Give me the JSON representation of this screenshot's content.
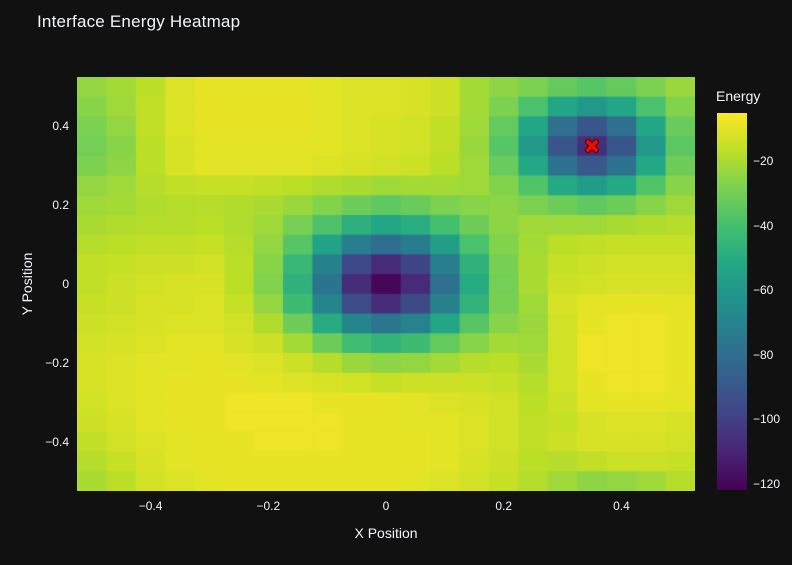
{
  "title": "Interface Energy Heatmap",
  "colors": {
    "background": "#111111",
    "text": "#f2f5fa",
    "marker_red": "#e8100c",
    "marker_edge": "#7a0000"
  },
  "chart_data": {
    "type": "heatmap",
    "title": "Interface Energy Heatmap",
    "xlabel": "X Position",
    "ylabel": "Y Position",
    "x_range": [
      -0.525,
      0.525
    ],
    "y_range": [
      -0.525,
      0.525
    ],
    "x_ticks": [
      -0.4,
      -0.2,
      0,
      0.2,
      0.4
    ],
    "y_ticks": [
      0.4,
      0.2,
      0,
      -0.2,
      -0.4
    ],
    "grid": false,
    "legend": false,
    "colorbar": {
      "title": "Energy",
      "ticks": [
        -20,
        -40,
        -60,
        -80,
        -100,
        -120
      ],
      "position": "right"
    },
    "zmin": -122,
    "zmax": -5,
    "colorscale": "viridis",
    "colorscale_stops": [
      "#440154",
      "#482475",
      "#414487",
      "#355f8d",
      "#2a788e",
      "#21918c",
      "#22a884",
      "#44bf70",
      "#7ad151",
      "#bddf26",
      "#fde725"
    ],
    "marker": {
      "symbol": "x",
      "x": 0.35,
      "y": 0.35,
      "note": "red X at secondary energy well"
    },
    "x": [
      -0.5,
      -0.45,
      -0.4,
      -0.35,
      -0.3,
      -0.25,
      -0.2,
      -0.15,
      -0.1,
      -0.05,
      0,
      0.05,
      0.1,
      0.15,
      0.2,
      0.25,
      0.3,
      0.35,
      0.4,
      0.45,
      0.5
    ],
    "y": [
      0.5,
      0.45,
      0.4,
      0.35,
      0.3,
      0.25,
      0.2,
      0.15,
      0.1,
      0.05,
      0,
      -0.05,
      -0.1,
      -0.15,
      -0.2,
      -0.25,
      -0.3,
      -0.35,
      -0.4,
      -0.45,
      -0.5
    ],
    "z": [
      [
        -24,
        -21,
        -17,
        -11,
        -9,
        -9,
        -9,
        -9,
        -10,
        -11,
        -11,
        -12,
        -14,
        -21,
        -25,
        -28,
        -33,
        -36,
        -33,
        -28,
        -23
      ],
      [
        -26,
        -22,
        -16,
        -11,
        -9,
        -9,
        -9,
        -9,
        -10,
        -11,
        -11,
        -12,
        -14,
        -21,
        -28,
        -39,
        -53,
        -60,
        -53,
        -39,
        -27
      ],
      [
        -28,
        -24,
        -16,
        -11,
        -9,
        -9,
        -9,
        -9,
        -10,
        -11,
        -12,
        -13,
        -16,
        -22,
        -33,
        -53,
        -79,
        -91,
        -79,
        -53,
        -32
      ],
      [
        -30,
        -26,
        -17,
        -12,
        -10,
        -10,
        -10,
        -10,
        -10,
        -11,
        -12,
        -13,
        -16,
        -23,
        -36,
        -60,
        -91,
        -106,
        -91,
        -60,
        -35
      ],
      [
        -28,
        -25,
        -17,
        -12,
        -10,
        -10,
        -10,
        -10,
        -11,
        -12,
        -13,
        -14,
        -17,
        -22,
        -32,
        -52,
        -78,
        -90,
        -78,
        -52,
        -31
      ],
      [
        -24,
        -22,
        -18,
        -16,
        -15,
        -15,
        -16,
        -17,
        -19,
        -20,
        -22,
        -21,
        -21,
        -22,
        -27,
        -37,
        -51,
        -58,
        -51,
        -37,
        -26
      ],
      [
        -22,
        -21,
        -19,
        -18,
        -18,
        -19,
        -20,
        -23,
        -27,
        -31,
        -34,
        -32,
        -28,
        -26,
        -25,
        -28,
        -31,
        -34,
        -31,
        -26,
        -22
      ],
      [
        -20,
        -19,
        -18,
        -18,
        -17,
        -19,
        -22,
        -29,
        -38,
        -48,
        -53,
        -49,
        -40,
        -31,
        -25,
        -22,
        -22,
        -22,
        -20,
        -19,
        -18
      ],
      [
        -18,
        -17,
        -16,
        -16,
        -15,
        -18,
        -24,
        -36,
        -55,
        -73,
        -80,
        -74,
        -57,
        -39,
        -27,
        -21,
        -17,
        -16,
        -15,
        -15,
        -15
      ],
      [
        -16,
        -15,
        -14,
        -14,
        -13,
        -17,
        -26,
        -44,
        -71,
        -97,
        -108,
        -98,
        -73,
        -47,
        -29,
        -20,
        -15,
        -14,
        -13,
        -13,
        -13
      ],
      [
        -16,
        -14,
        -13,
        -12,
        -12,
        -17,
        -27,
        -47,
        -77,
        -107,
        -120,
        -108,
        -79,
        -50,
        -30,
        -20,
        -14,
        -13,
        -12,
        -12,
        -12
      ],
      [
        -15,
        -14,
        -12,
        -12,
        -11,
        -15,
        -24,
        -42,
        -69,
        -95,
        -107,
        -96,
        -71,
        -46,
        -29,
        -22,
        -12,
        -10,
        -9,
        -9,
        -10
      ],
      [
        -14,
        -13,
        -12,
        -11,
        -11,
        -13,
        -19,
        -31,
        -50,
        -69,
        -76,
        -70,
        -53,
        -36,
        -26,
        -23,
        -13,
        -9,
        -8,
        -8,
        -9
      ],
      [
        -13,
        -12,
        -11,
        -10,
        -10,
        -12,
        -14,
        -21,
        -31,
        -41,
        -46,
        -42,
        -33,
        -26,
        -21,
        -22,
        -13,
        -8,
        -8,
        -8,
        -9
      ],
      [
        -12,
        -11,
        -10,
        -10,
        -9,
        -10,
        -11,
        -14,
        -18,
        -23,
        -25,
        -24,
        -21,
        -18,
        -17,
        -20,
        -13,
        -8,
        -8,
        -8,
        -9
      ],
      [
        -12,
        -11,
        -10,
        -9,
        -9,
        -9,
        -10,
        -11,
        -12,
        -13,
        -15,
        -14,
        -14,
        -14,
        -15,
        -18,
        -13,
        -9,
        -8,
        -8,
        -9
      ],
      [
        -13,
        -11,
        -10,
        -9,
        -9,
        -8,
        -8,
        -8,
        -9,
        -9,
        -9,
        -10,
        -11,
        -12,
        -13,
        -17,
        -14,
        -10,
        -9,
        -9,
        -10
      ],
      [
        -14,
        -12,
        -10,
        -9,
        -9,
        -8,
        -8,
        -8,
        -8,
        -9,
        -9,
        -10,
        -10,
        -11,
        -13,
        -16,
        -15,
        -12,
        -11,
        -11,
        -12
      ],
      [
        -16,
        -13,
        -11,
        -10,
        -9,
        -9,
        -8,
        -8,
        -8,
        -9,
        -9,
        -9,
        -10,
        -11,
        -13,
        -16,
        -14,
        -12,
        -12,
        -12,
        -13
      ],
      [
        -18,
        -15,
        -12,
        -10,
        -9,
        -9,
        -9,
        -9,
        -9,
        -9,
        -9,
        -9,
        -10,
        -12,
        -14,
        -17,
        -18,
        -16,
        -14,
        -14,
        -15
      ],
      [
        -20,
        -17,
        -13,
        -11,
        -10,
        -9,
        -9,
        -9,
        -9,
        -9,
        -9,
        -10,
        -11,
        -13,
        -15,
        -18,
        -22,
        -25,
        -24,
        -22,
        -18
      ]
    ]
  }
}
